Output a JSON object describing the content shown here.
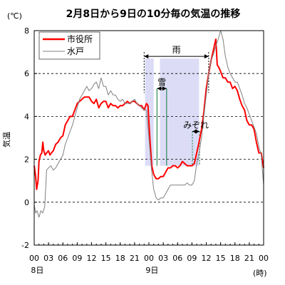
{
  "chart_data": {
    "type": "line",
    "title": "2月8日から9日の10分毎の気温の推移",
    "ylabel": "気温",
    "yunit": "(℃)",
    "xunit": "(時)",
    "ylim": [
      -2,
      8
    ],
    "yticks": [
      -2,
      0,
      2,
      4,
      6,
      8
    ],
    "xlim": [
      0,
      48
    ],
    "xticks": [
      {
        "x": 0,
        "label": "00"
      },
      {
        "x": 3,
        "label": "03"
      },
      {
        "x": 6,
        "label": "06"
      },
      {
        "x": 9,
        "label": "09"
      },
      {
        "x": 12,
        "label": "12"
      },
      {
        "x": 15,
        "label": "15"
      },
      {
        "x": 18,
        "label": "18"
      },
      {
        "x": 21,
        "label": "21"
      },
      {
        "x": 24,
        "label": "00"
      },
      {
        "x": 27,
        "label": "03"
      },
      {
        "x": 30,
        "label": "06"
      },
      {
        "x": 33,
        "label": "09"
      },
      {
        "x": 36,
        "label": "12"
      },
      {
        "x": 39,
        "label": "15"
      },
      {
        "x": 42,
        "label": "18"
      },
      {
        "x": 45,
        "label": "21"
      },
      {
        "x": 48,
        "label": "00"
      }
    ],
    "day_labels": [
      {
        "x": 2,
        "label": "8日"
      },
      {
        "x": 26,
        "label": "9日"
      }
    ],
    "grid": "horizontal dashed",
    "legend_position": "top-left",
    "series": [
      {
        "name": "市役所",
        "color": "#ff0000",
        "points": [
          [
            0,
            1.7
          ],
          [
            0.3,
            1.2
          ],
          [
            0.5,
            0.6
          ],
          [
            0.8,
            1.0
          ],
          [
            1,
            1.9
          ],
          [
            1.3,
            2.2
          ],
          [
            1.6,
            2.3
          ],
          [
            1.8,
            2.8
          ],
          [
            2.0,
            2.4
          ],
          [
            2.3,
            2.2
          ],
          [
            2.6,
            2.3
          ],
          [
            3.0,
            2.4
          ],
          [
            3.3,
            2.2
          ],
          [
            3.6,
            2.3
          ],
          [
            4.0,
            2.4
          ],
          [
            4.5,
            2.7
          ],
          [
            5.0,
            2.8
          ],
          [
            5.5,
            3.0
          ],
          [
            6.0,
            3.1
          ],
          [
            6.5,
            3.6
          ],
          [
            7.0,
            3.8
          ],
          [
            7.5,
            4.0
          ],
          [
            8.0,
            4.0
          ],
          [
            8.5,
            4.3
          ],
          [
            9.0,
            4.6
          ],
          [
            9.5,
            4.7
          ],
          [
            10.0,
            4.8
          ],
          [
            10.5,
            4.9
          ],
          [
            11.0,
            4.9
          ],
          [
            11.5,
            4.9
          ],
          [
            12.0,
            4.7
          ],
          [
            12.5,
            4.6
          ],
          [
            13.0,
            4.8
          ],
          [
            13.5,
            4.4
          ],
          [
            14.0,
            4.6
          ],
          [
            14.5,
            4.7
          ],
          [
            15.0,
            4.7
          ],
          [
            15.5,
            4.4
          ],
          [
            16.0,
            4.6
          ],
          [
            16.5,
            4.5
          ],
          [
            17.0,
            4.5
          ],
          [
            17.5,
            4.4
          ],
          [
            18.0,
            4.5
          ],
          [
            18.5,
            4.5
          ],
          [
            19.0,
            4.6
          ],
          [
            19.5,
            4.7
          ],
          [
            20.0,
            4.6
          ],
          [
            20.5,
            4.7
          ],
          [
            21.0,
            4.7
          ],
          [
            21.5,
            4.6
          ],
          [
            22.0,
            4.5
          ],
          [
            22.5,
            4.5
          ],
          [
            23.0,
            4.3
          ],
          [
            23.5,
            4.6
          ],
          [
            23.8,
            4.5
          ],
          [
            24.2,
            3.0
          ],
          [
            24.6,
            1.7
          ],
          [
            25.0,
            1.3
          ],
          [
            25.5,
            1.1
          ],
          [
            26.0,
            1.1
          ],
          [
            26.5,
            1.2
          ],
          [
            27.0,
            1.2
          ],
          [
            27.5,
            1.4
          ],
          [
            28.0,
            1.6
          ],
          [
            28.5,
            1.6
          ],
          [
            29.0,
            1.7
          ],
          [
            29.5,
            1.7
          ],
          [
            30.0,
            1.6
          ],
          [
            30.5,
            1.7
          ],
          [
            31.0,
            1.9
          ],
          [
            31.5,
            1.8
          ],
          [
            32.0,
            1.7
          ],
          [
            32.5,
            1.7
          ],
          [
            33.0,
            1.7
          ],
          [
            33.5,
            1.8
          ],
          [
            34.0,
            2.3
          ],
          [
            34.5,
            2.8
          ],
          [
            35.0,
            3.4
          ],
          [
            35.5,
            4.2
          ],
          [
            36.0,
            5.3
          ],
          [
            36.5,
            6.0
          ],
          [
            37.0,
            6.6
          ],
          [
            37.5,
            7.1
          ],
          [
            38.0,
            7.6
          ],
          [
            38.3,
            6.4
          ],
          [
            38.6,
            6.3
          ],
          [
            39.0,
            6.1
          ],
          [
            39.5,
            5.8
          ],
          [
            40.0,
            5.8
          ],
          [
            40.5,
            5.6
          ],
          [
            41.0,
            5.6
          ],
          [
            41.5,
            5.3
          ],
          [
            42.0,
            5.4
          ],
          [
            42.5,
            5.2
          ],
          [
            43.0,
            4.8
          ],
          [
            43.5,
            4.5
          ],
          [
            44.0,
            4.3
          ],
          [
            44.5,
            3.8
          ],
          [
            45.0,
            3.6
          ],
          [
            45.5,
            3.6
          ],
          [
            46.0,
            3.4
          ],
          [
            46.5,
            2.8
          ],
          [
            47.0,
            2.3
          ],
          [
            47.5,
            2.3
          ],
          [
            48.0,
            1.6
          ]
        ]
      },
      {
        "name": "水戸",
        "color": "#808080",
        "points": [
          [
            0,
            -0.1
          ],
          [
            0.3,
            -0.5
          ],
          [
            0.6,
            -0.4
          ],
          [
            1.0,
            -0.7
          ],
          [
            1.4,
            -0.4
          ],
          [
            1.8,
            -0.5
          ],
          [
            2.2,
            -0.2
          ],
          [
            2.6,
            1.5
          ],
          [
            3.0,
            1.6
          ],
          [
            3.5,
            1.7
          ],
          [
            4.0,
            1.5
          ],
          [
            4.5,
            1.6
          ],
          [
            5.0,
            1.8
          ],
          [
            5.5,
            2.0
          ],
          [
            6.0,
            2.2
          ],
          [
            6.5,
            2.7
          ],
          [
            7.0,
            3.0
          ],
          [
            7.5,
            3.3
          ],
          [
            8.0,
            3.6
          ],
          [
            8.5,
            4.0
          ],
          [
            9.0,
            4.4
          ],
          [
            9.5,
            4.8
          ],
          [
            10.0,
            5.0
          ],
          [
            10.5,
            5.2
          ],
          [
            11.0,
            5.4
          ],
          [
            11.5,
            5.2
          ],
          [
            12.0,
            5.3
          ],
          [
            12.5,
            5.5
          ],
          [
            13.0,
            5.6
          ],
          [
            13.5,
            5.3
          ],
          [
            14.0,
            5.8
          ],
          [
            14.5,
            5.4
          ],
          [
            15.0,
            5.4
          ],
          [
            15.5,
            5.0
          ],
          [
            16.0,
            5.2
          ],
          [
            16.5,
            5.0
          ],
          [
            17.0,
            5.0
          ],
          [
            17.5,
            4.8
          ],
          [
            18.0,
            4.7
          ],
          [
            18.5,
            4.8
          ],
          [
            19.0,
            4.6
          ],
          [
            19.5,
            4.6
          ],
          [
            20.0,
            4.6
          ],
          [
            20.5,
            4.7
          ],
          [
            21.0,
            4.8
          ],
          [
            21.5,
            4.6
          ],
          [
            22.0,
            4.5
          ],
          [
            22.5,
            4.4
          ],
          [
            23.0,
            4.3
          ],
          [
            23.5,
            4.3
          ],
          [
            24.0,
            3.0
          ],
          [
            24.5,
            1.6
          ],
          [
            25.0,
            0.6
          ],
          [
            25.5,
            0.2
          ],
          [
            26.0,
            0.1
          ],
          [
            26.5,
            0.2
          ],
          [
            27.0,
            0.2
          ],
          [
            27.5,
            0.4
          ],
          [
            28.0,
            0.6
          ],
          [
            28.5,
            0.8
          ],
          [
            29.0,
            0.8
          ],
          [
            29.5,
            0.8
          ],
          [
            30.0,
            0.8
          ],
          [
            30.5,
            0.8
          ],
          [
            31.0,
            0.8
          ],
          [
            31.5,
            0.8
          ],
          [
            32.0,
            0.9
          ],
          [
            32.5,
            0.8
          ],
          [
            33.0,
            0.8
          ],
          [
            33.5,
            1.0
          ],
          [
            34.0,
            1.8
          ],
          [
            34.5,
            2.3
          ],
          [
            35.0,
            3.0
          ],
          [
            35.5,
            4.0
          ],
          [
            36.0,
            5.0
          ],
          [
            36.5,
            6.0
          ],
          [
            37.0,
            6.6
          ],
          [
            37.5,
            6.9
          ],
          [
            38.0,
            7.3
          ],
          [
            38.5,
            7.6
          ],
          [
            39.0,
            8.0
          ],
          [
            39.5,
            7.6
          ],
          [
            40.0,
            6.8
          ],
          [
            40.5,
            6.3
          ],
          [
            41.0,
            6.0
          ],
          [
            41.5,
            5.8
          ],
          [
            42.0,
            5.6
          ],
          [
            42.5,
            5.6
          ],
          [
            43.0,
            5.3
          ],
          [
            43.5,
            5.0
          ],
          [
            44.0,
            4.6
          ],
          [
            44.5,
            4.4
          ],
          [
            45.0,
            4.1
          ],
          [
            45.5,
            3.8
          ],
          [
            46.0,
            3.5
          ],
          [
            46.5,
            3.2
          ],
          [
            47.0,
            2.6
          ],
          [
            47.5,
            2.2
          ],
          [
            48.0,
            0.8
          ]
        ]
      }
    ],
    "shaded_periods": [
      {
        "start": 23.2,
        "end": 25.0
      },
      {
        "start": 26.3,
        "end": 34.5
      }
    ],
    "annotations": [
      {
        "label": "雨",
        "start": 23.0,
        "end": 36.5,
        "y": 6.8
      },
      {
        "label": "雪",
        "start": 25.7,
        "end": 27.7,
        "y": 5.3
      },
      {
        "label": "みぞれ",
        "start": 33.1,
        "end": 34.6,
        "y": 3.3
      }
    ]
  }
}
